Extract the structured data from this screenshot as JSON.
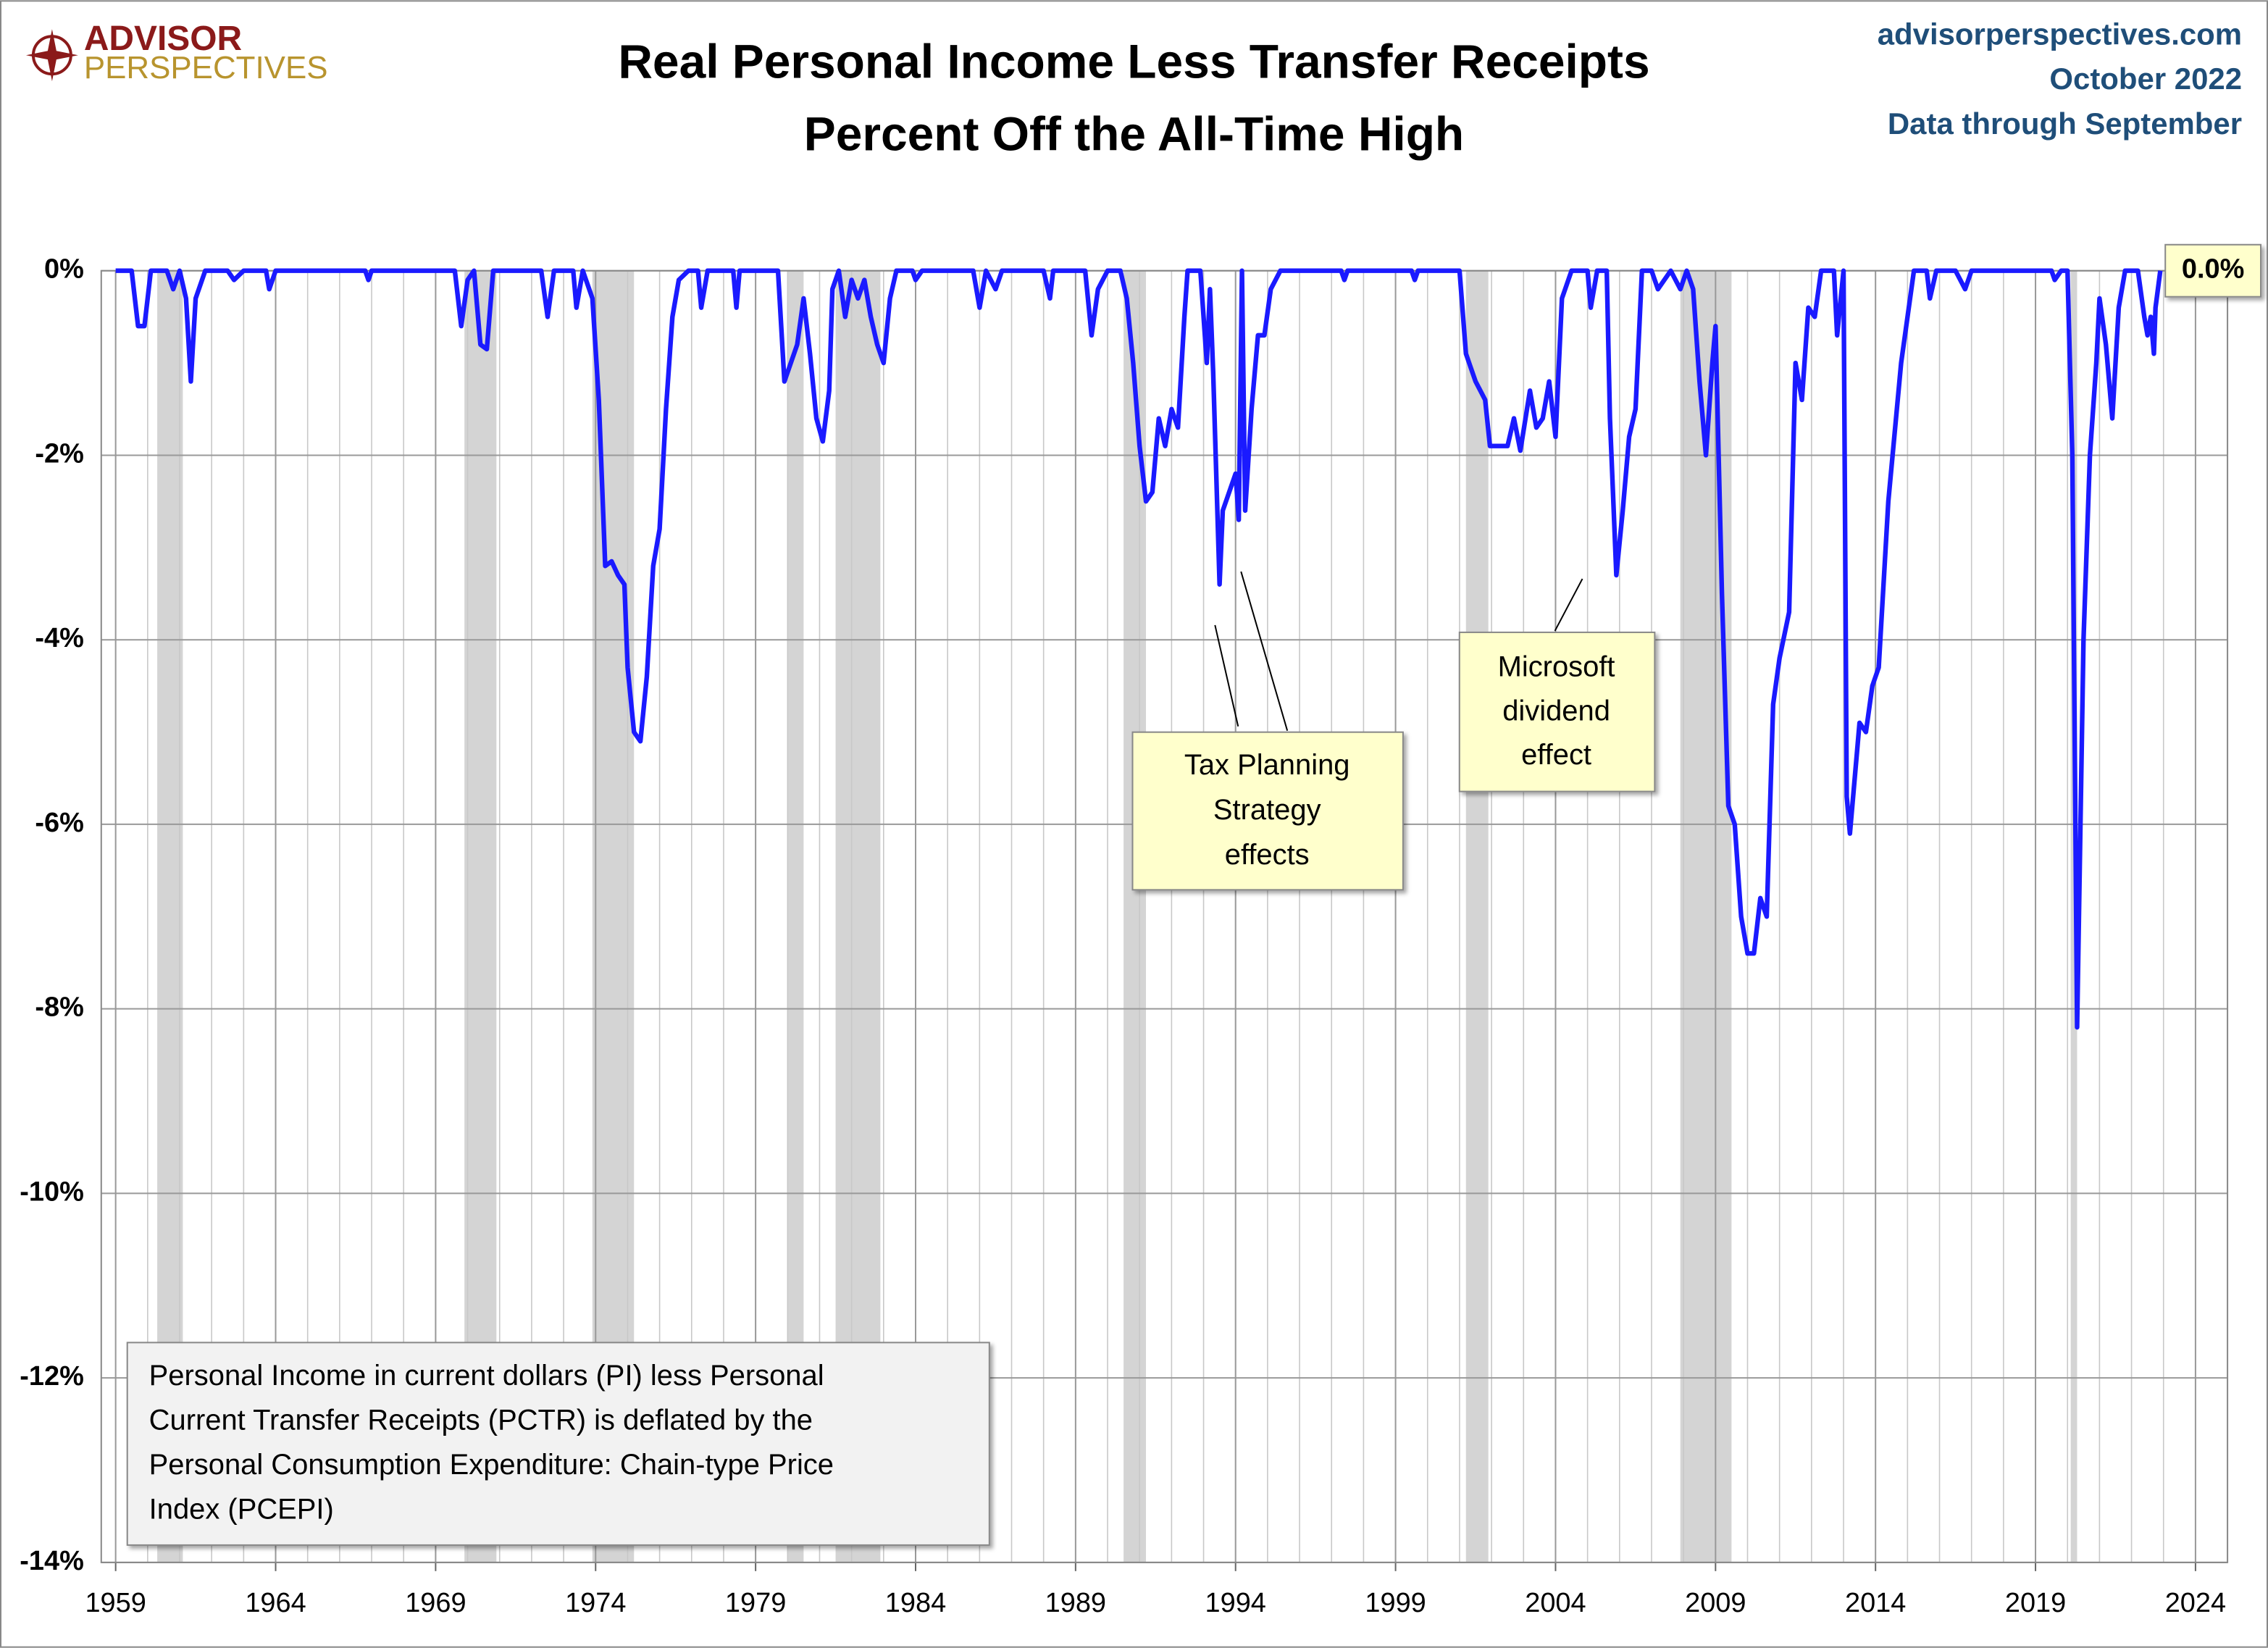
{
  "header": {
    "logo_top": "ADVISOR",
    "logo_bottom": "PERSPECTIVES",
    "site": "advisorperspectives.com",
    "date": "October 2022",
    "data_through": "Data through September"
  },
  "chart_data": {
    "type": "line",
    "title": [
      "Real Personal Income Less Transfer Receipts",
      "Percent Off the All-Time High"
    ],
    "xlim": [
      1958.55,
      2025
    ],
    "xticks": [
      1959,
      1964,
      1969,
      1974,
      1979,
      1984,
      1989,
      1994,
      1999,
      2004,
      2009,
      2014,
      2019,
      2024
    ],
    "ylim": [
      -14,
      0
    ],
    "yticks": [
      {
        "value": 0,
        "label": "0%"
      },
      {
        "value": -2,
        "label": "-2%"
      },
      {
        "value": -4,
        "label": "-4%"
      },
      {
        "value": -6,
        "label": "-6%"
      },
      {
        "value": -8,
        "label": "-8%"
      },
      {
        "value": -10,
        "label": "-10%"
      },
      {
        "value": -12,
        "label": "-12%"
      },
      {
        "value": -14,
        "label": "-14%"
      }
    ],
    "grid": true,
    "minor_year_grid": true,
    "recessions": [
      [
        1960.3,
        1961.1
      ],
      [
        1969.9,
        1970.9
      ],
      [
        1973.9,
        1975.2
      ],
      [
        1980.0,
        1980.5
      ],
      [
        1981.5,
        1982.9
      ],
      [
        1990.5,
        1991.2
      ],
      [
        2001.2,
        2001.9
      ],
      [
        2007.9,
        2009.5
      ],
      [
        2020.1,
        2020.3
      ]
    ],
    "recession_color": "#d4d4d4",
    "series": [
      {
        "color": "#1a1aff",
        "x": [
          1959.0,
          1959.5,
          1959.7,
          1959.9,
          1960.1,
          1960.6,
          1960.8,
          1961.0,
          1961.2,
          1961.35,
          1961.5,
          1961.8,
          1962.5,
          1962.7,
          1963.0,
          1963.7,
          1963.8,
          1964.0,
          1966.8,
          1966.9,
          1967.0,
          1969.6,
          1969.8,
          1970.0,
          1970.2,
          1970.4,
          1970.6,
          1970.8,
          1972.3,
          1972.5,
          1972.7,
          1973.3,
          1973.4,
          1973.6,
          1973.9,
          1974.1,
          1974.3,
          1974.5,
          1974.7,
          1974.9,
          1975.0,
          1975.2,
          1975.4,
          1975.6,
          1975.8,
          1976.0,
          1976.2,
          1976.4,
          1976.6,
          1976.9,
          1977.2,
          1977.3,
          1977.5,
          1978.3,
          1978.4,
          1978.5,
          1979.7,
          1979.9,
          1980.1,
          1980.3,
          1980.5,
          1980.7,
          1980.9,
          1981.1,
          1981.3,
          1981.4,
          1981.6,
          1981.8,
          1982.0,
          1982.2,
          1982.4,
          1982.6,
          1982.8,
          1983.0,
          1983.2,
          1983.4,
          1983.9,
          1984.0,
          1984.2,
          1985.8,
          1986.0,
          1986.2,
          1986.5,
          1986.7,
          1988.0,
          1988.2,
          1988.3,
          1989.3,
          1989.5,
          1989.7,
          1990.0,
          1990.4,
          1990.6,
          1990.8,
          1991.0,
          1991.2,
          1991.4,
          1991.6,
          1991.8,
          1992.0,
          1992.2,
          1992.4,
          1992.5,
          1992.9,
          1993.1,
          1993.2,
          1993.3,
          1993.5,
          1993.6,
          1993.8,
          1994.0,
          1994.1,
          1994.2,
          1994.3,
          1994.5,
          1994.7,
          1994.9,
          1995.1,
          1995.4,
          1997.3,
          1997.4,
          1997.5,
          1999.5,
          1999.6,
          1999.7,
          2001.0,
          2001.2,
          2001.5,
          2001.8,
          2001.95,
          2002.3,
          2002.5,
          2002.7,
          2002.9,
          2003.2,
          2003.4,
          2003.6,
          2003.8,
          2004.0,
          2004.2,
          2004.5,
          2005.0,
          2005.1,
          2005.3,
          2005.6,
          2005.7,
          2005.9,
          2006.1,
          2006.3,
          2006.5,
          2006.7,
          2007.0,
          2007.2,
          2007.4,
          2007.6,
          2007.9,
          2008.1,
          2008.3,
          2008.5,
          2008.7,
          2008.9,
          2009.0,
          2009.2,
          2009.4,
          2009.6,
          2009.8,
          2010.0,
          2010.2,
          2010.4,
          2010.6,
          2010.8,
          2011.0,
          2011.3,
          2011.5,
          2011.7,
          2011.9,
          2012.1,
          2012.3,
          2012.7,
          2012.8,
          2013.0,
          2013.1,
          2013.2,
          2013.5,
          2013.7,
          2013.9,
          2014.1,
          2014.4,
          2014.8,
          2015.2,
          2015.6,
          2015.7,
          2015.9,
          2016.5,
          2016.8,
          2017.0,
          2019.5,
          2019.6,
          2019.8,
          2020.0,
          2020.15,
          2020.3,
          2020.5,
          2020.7,
          2020.9,
          2021.0,
          2021.2,
          2021.4,
          2021.6,
          2021.8,
          2022.2,
          2022.4,
          2022.5,
          2022.6,
          2022.7,
          2022.75,
          2022.9
        ],
        "values": [
          0,
          0,
          -0.6,
          -0.6,
          0,
          0,
          -0.2,
          0,
          -0.3,
          -1.2,
          -0.3,
          0,
          0,
          -0.1,
          0,
          0,
          -0.2,
          0,
          0,
          -0.1,
          0,
          0,
          -0.6,
          -0.1,
          0,
          -0.8,
          -0.85,
          0,
          0,
          -0.5,
          0,
          0,
          -0.4,
          0,
          -0.3,
          -1.4,
          -3.2,
          -3.15,
          -3.3,
          -3.4,
          -4.3,
          -5.0,
          -5.1,
          -4.4,
          -3.2,
          -2.8,
          -1.5,
          -0.5,
          -0.1,
          0,
          0,
          -0.4,
          0,
          0,
          -0.4,
          0,
          0,
          -1.2,
          -1.0,
          -0.8,
          -0.3,
          -0.9,
          -1.6,
          -1.85,
          -1.3,
          -0.2,
          0,
          -0.5,
          -0.1,
          -0.3,
          -0.1,
          -0.5,
          -0.8,
          -1.0,
          -0.3,
          0,
          0,
          -0.1,
          0,
          0,
          -0.4,
          0,
          -0.2,
          0,
          0,
          -0.3,
          0,
          0,
          -0.7,
          -0.2,
          0,
          0,
          -0.3,
          -1.0,
          -1.9,
          -2.5,
          -2.4,
          -1.6,
          -1.9,
          -1.5,
          -1.7,
          -0.5,
          0,
          0,
          -1.0,
          -0.2,
          -1.1,
          -3.4,
          -2.6,
          -2.4,
          -2.2,
          -2.7,
          0,
          -2.6,
          -1.5,
          -0.7,
          -0.7,
          -0.2,
          0,
          0,
          -0.1,
          0,
          0,
          -0.1,
          0,
          0,
          -0.9,
          -1.2,
          -1.4,
          -1.9,
          -1.9,
          -1.9,
          -1.6,
          -1.95,
          -1.3,
          -1.7,
          -1.6,
          -1.2,
          -1.8,
          -0.3,
          0,
          0,
          -0.4,
          0,
          0,
          -1.6,
          -3.3,
          -2.6,
          -1.8,
          -1.5,
          0,
          0,
          -0.2,
          -0.1,
          0,
          -0.2,
          0,
          -0.2,
          -1.2,
          -2.0,
          -1.0,
          -0.6,
          -3.5,
          -5.8,
          -6.0,
          -7.0,
          -7.4,
          -7.4,
          -6.8,
          -7.0,
          -4.7,
          -4.2,
          -3.7,
          -1.0,
          -1.4,
          -0.4,
          -0.5,
          0,
          0,
          -0.7,
          0,
          -5.7,
          -6.1,
          -4.9,
          -5.0,
          -4.5,
          -4.3,
          -2.5,
          -1.0,
          0,
          0,
          -0.3,
          0,
          0,
          -0.2,
          0,
          0,
          -0.1,
          0,
          0,
          -2.0,
          -8.2,
          -4.0,
          -2.0,
          -1.0,
          -0.3,
          -0.8,
          -1.6,
          -0.4,
          0,
          0,
          -0.5,
          -0.7,
          -0.5,
          -0.9,
          -0.4,
          0
        ]
      }
    ],
    "end_label": "0.0%",
    "annotations": [
      {
        "lines": [
          "Tax Planning",
          "Strategy",
          "effects"
        ]
      },
      {
        "lines": [
          "Microsoft",
          "dividend",
          "effect"
        ]
      },
      {
        "lines": [
          "Personal Income in current dollars  (PI) less Personal",
          "Current Transfer Receipts (PCTR) is deflated by the",
          "Personal Consumption Expenditure: Chain-type Price",
          "Index (PCEPI)"
        ]
      }
    ]
  }
}
